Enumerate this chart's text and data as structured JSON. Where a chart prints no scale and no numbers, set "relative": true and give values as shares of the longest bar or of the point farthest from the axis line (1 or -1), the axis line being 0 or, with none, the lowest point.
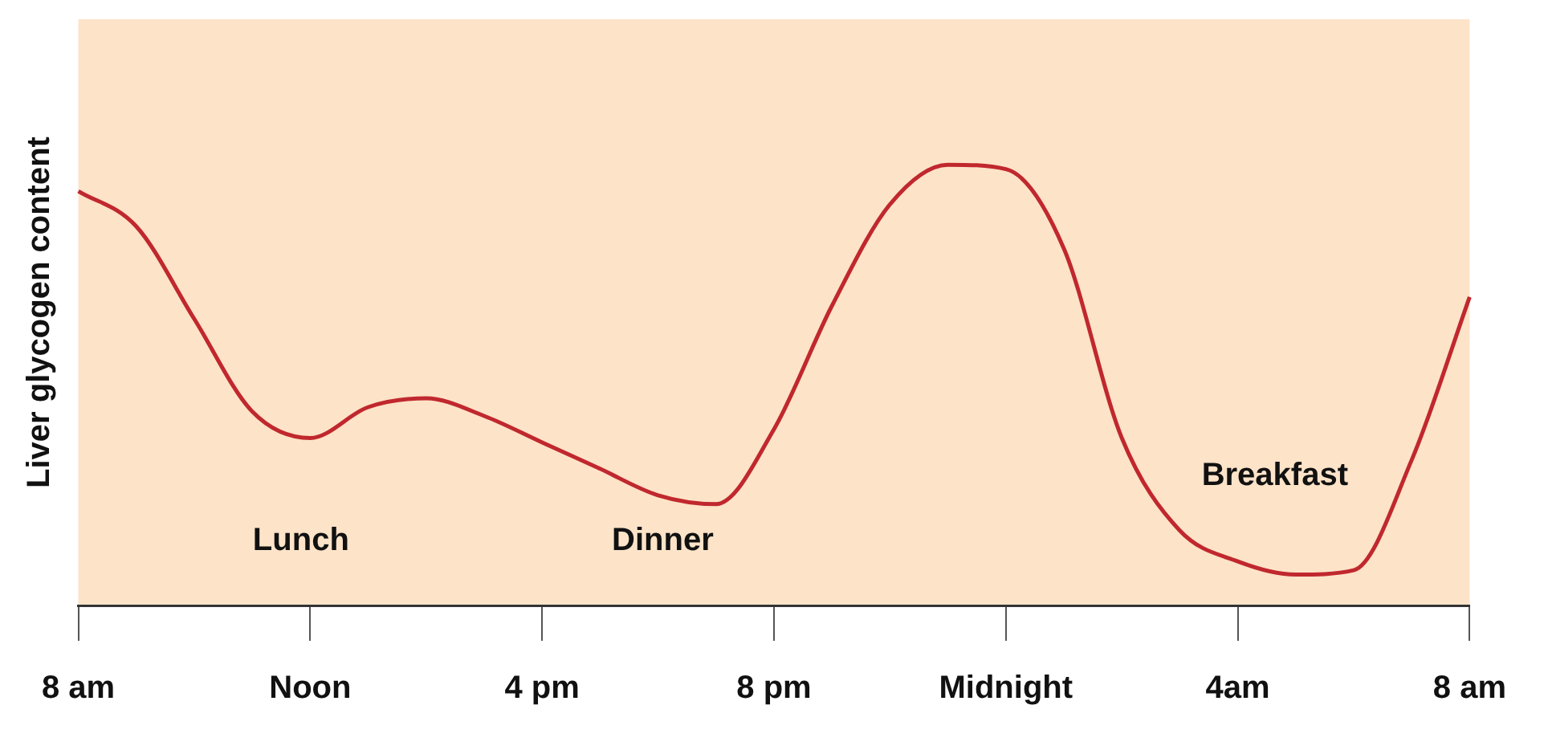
{
  "chart_data": {
    "type": "line",
    "relative": true,
    "ylabel": "Liver glycogen content",
    "color": "#c0282e",
    "categories": [
      "8 am",
      null,
      null,
      null,
      "Noon",
      null,
      null,
      null,
      "4 pm",
      null,
      null,
      null,
      "8 pm",
      null,
      null,
      null,
      "Midnight",
      null,
      null,
      null,
      "4am",
      null,
      null,
      null,
      "8 am"
    ],
    "values": [
      0.94,
      0.86,
      0.65,
      0.44,
      0.38,
      0.45,
      0.47,
      0.43,
      0.37,
      0.31,
      0.25,
      0.23,
      0.4,
      0.68,
      0.91,
      1.0,
      0.99,
      0.81,
      0.38,
      0.17,
      0.1,
      0.07,
      0.08,
      0.33,
      0.7
    ],
    "annotations": [
      "Lunch",
      "Dinner",
      "Breakfast"
    ],
    "grid": false,
    "legend": false,
    "marker": "none",
    "line_style": "solid"
  }
}
